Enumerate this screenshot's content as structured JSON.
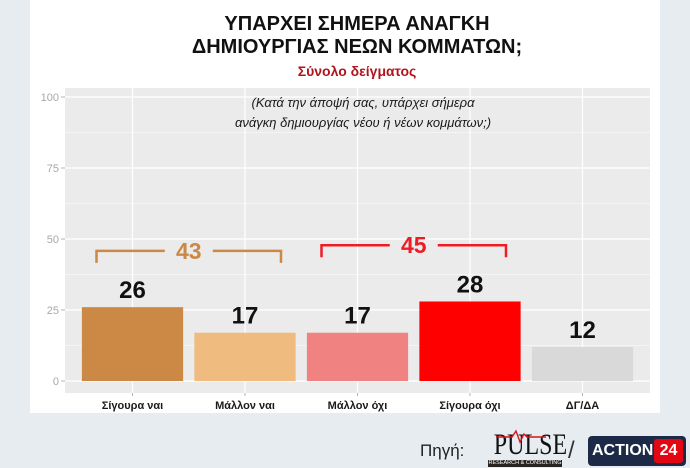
{
  "chart_data": {
    "type": "bar",
    "title_lines": [
      "ΥΠΑΡΧΕΙ ΣΗΜΕΡΑ ΑΝΑΓΚΗ",
      "ΔΗΜΙΟΥΡΓΙΑΣ ΝΕΩΝ ΚΟΜΜΑΤΩΝ;"
    ],
    "subtitle": "Σύνολο δείγματος",
    "annotation_lines": [
      "(Κατά την άποψή σας, υπάρχει σήμερα",
      "ανάγκη δημιουργίας νέου ή νέων κομμάτων;)"
    ],
    "categories": [
      "Σίγουρα ναι",
      "Μάλλον ναι",
      "Μάλλον όχι",
      "Σίγουρα όχι",
      "ΔΓ/ΔΑ"
    ],
    "values": [
      26,
      17,
      17,
      28,
      12
    ],
    "bar_colors": [
      "#cc8845",
      "#efbb7e",
      "#f08281",
      "#ff0000",
      "#d9d9d9"
    ],
    "ylim": [
      0,
      100
    ],
    "yticks": [
      0,
      25,
      50,
      75,
      100
    ],
    "grid": true,
    "groups": [
      {
        "value": 43,
        "span": [
          0,
          1
        ],
        "color": "#cc8845"
      },
      {
        "value": 45,
        "span": [
          2,
          3
        ],
        "color": "#ee1c25"
      }
    ]
  },
  "source": {
    "label": "Πηγή:",
    "separator": "/"
  },
  "logos": {
    "pulse": {
      "name": "PULSE",
      "tagline": "RESEARCH & CONSULTING"
    },
    "action24": {
      "word": "ACTION",
      "number": "24"
    }
  },
  "colors": {
    "subtitle": "#b0141d",
    "plot_background": "#ebebeb",
    "panel_background": "#ffffff",
    "page_background": "#e7ecf0"
  }
}
